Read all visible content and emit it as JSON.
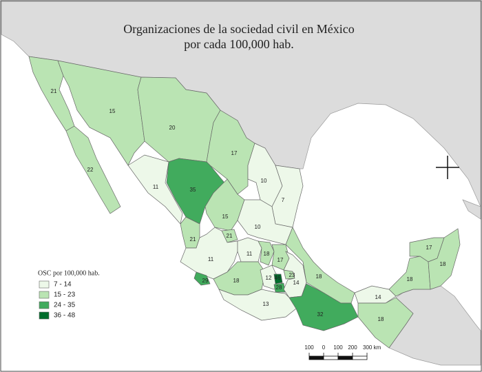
{
  "header": {
    "title": [
      "Organizaciones de la sociedad civil en México",
      "por cada 100,000 hab."
    ]
  },
  "legend": {
    "title": "OSC por 100,000 hab.",
    "items": [
      {
        "range": [
          7,
          14
        ],
        "label": "7 - 14",
        "color": "#edf8e9"
      },
      {
        "range": [
          15,
          23
        ],
        "label": "15 - 23",
        "color": "#bae4b3"
      },
      {
        "range": [
          24,
          35
        ],
        "label": "24 - 35",
        "color": "#41ab5d"
      },
      {
        "range": [
          36,
          48
        ],
        "label": "36 - 48",
        "color": "#006d2c"
      }
    ]
  },
  "regions": [
    {
      "value": 21
    },
    {
      "value": 15
    },
    {
      "value": 20
    },
    {
      "value": 17
    },
    {
      "value": 22
    },
    {
      "value": 11
    },
    {
      "value": 35
    },
    {
      "value": 10
    },
    {
      "value": 7
    },
    {
      "value": 15
    },
    {
      "value": 10
    },
    {
      "value": 21
    },
    {
      "value": 21
    },
    {
      "value": 11
    },
    {
      "value": 11
    },
    {
      "value": 18
    },
    {
      "value": 17
    },
    {
      "value": 18
    },
    {
      "value": 29
    },
    {
      "value": 18
    },
    {
      "value": 12
    },
    {
      "value": 46
    },
    {
      "value": 28
    },
    {
      "value": 23
    },
    {
      "value": 14
    },
    {
      "value": 13
    },
    {
      "value": 32
    },
    {
      "value": 14
    },
    {
      "value": 18
    },
    {
      "value": 18
    },
    {
      "value": 17
    },
    {
      "value": 18
    }
  ],
  "scale": {
    "ticks": [
      {
        "value": -100,
        "label": "100"
      },
      0,
      100,
      200,
      {
        "value": 300,
        "label": "300 km"
      }
    ]
  }
}
